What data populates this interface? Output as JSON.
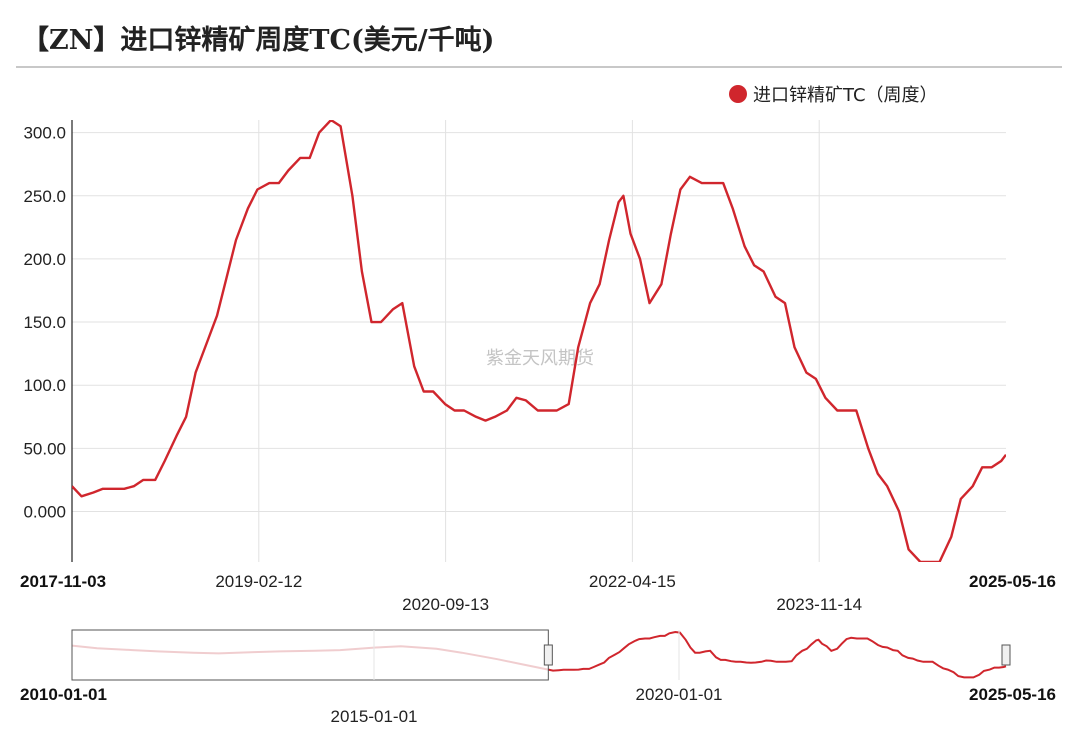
{
  "header": {
    "title": "【ZN】进口锌精矿周度TC(美元/千吨)"
  },
  "watermark": "紫金天风期货",
  "chart_data": {
    "type": "line",
    "title": "【ZN】进口锌精矿周度TC(美元/千吨)",
    "legend_position": "top-right",
    "grid": true,
    "series": [
      {
        "name": "进口锌精矿TC（周度）",
        "color": "#d0262d",
        "points": [
          [
            "2017-11-03",
            20
          ],
          [
            "2017-12-01",
            12
          ],
          [
            "2018-01-05",
            15
          ],
          [
            "2018-02-02",
            18
          ],
          [
            "2018-04-06",
            18
          ],
          [
            "2018-05-04",
            20
          ],
          [
            "2018-06-01",
            25
          ],
          [
            "2018-07-06",
            25
          ],
          [
            "2018-08-03",
            40
          ],
          [
            "2018-09-07",
            60
          ],
          [
            "2018-10-05",
            75
          ],
          [
            "2018-11-02",
            110
          ],
          [
            "2018-12-07",
            135
          ],
          [
            "2019-01-04",
            155
          ],
          [
            "2019-02-01",
            185
          ],
          [
            "2019-03-01",
            215
          ],
          [
            "2019-04-05",
            240
          ],
          [
            "2019-05-03",
            255
          ],
          [
            "2019-06-07",
            260
          ],
          [
            "2019-07-05",
            260
          ],
          [
            "2019-08-02",
            270
          ],
          [
            "2019-09-06",
            280
          ],
          [
            "2019-10-04",
            280
          ],
          [
            "2019-11-01",
            300
          ],
          [
            "2019-12-06",
            310
          ],
          [
            "2020-01-03",
            305
          ],
          [
            "2020-02-07",
            250
          ],
          [
            "2020-03-06",
            190
          ],
          [
            "2020-04-03",
            150
          ],
          [
            "2020-05-01",
            150
          ],
          [
            "2020-06-05",
            160
          ],
          [
            "2020-07-03",
            165
          ],
          [
            "2020-08-07",
            115
          ],
          [
            "2020-09-04",
            95
          ],
          [
            "2020-10-02",
            95
          ],
          [
            "2020-11-06",
            85
          ],
          [
            "2020-12-04",
            80
          ],
          [
            "2021-01-01",
            80
          ],
          [
            "2021-02-05",
            75
          ],
          [
            "2021-03-05",
            72
          ],
          [
            "2021-04-02",
            75
          ],
          [
            "2021-05-07",
            80
          ],
          [
            "2021-06-04",
            90
          ],
          [
            "2021-07-02",
            88
          ],
          [
            "2021-08-06",
            80
          ],
          [
            "2021-09-03",
            80
          ],
          [
            "2021-10-01",
            80
          ],
          [
            "2021-11-05",
            85
          ],
          [
            "2021-12-03",
            130
          ],
          [
            "2022-01-07",
            165
          ],
          [
            "2022-02-04",
            180
          ],
          [
            "2022-03-04",
            215
          ],
          [
            "2022-04-01",
            245
          ],
          [
            "2022-04-15",
            250
          ],
          [
            "2022-05-06",
            220
          ],
          [
            "2022-06-03",
            200
          ],
          [
            "2022-07-01",
            165
          ],
          [
            "2022-08-05",
            180
          ],
          [
            "2022-09-02",
            220
          ],
          [
            "2022-09-30",
            255
          ],
          [
            "2022-10-28",
            265
          ],
          [
            "2022-12-02",
            260
          ],
          [
            "2023-01-06",
            260
          ],
          [
            "2023-02-03",
            260
          ],
          [
            "2023-03-03",
            240
          ],
          [
            "2023-04-07",
            210
          ],
          [
            "2023-05-05",
            195
          ],
          [
            "2023-06-02",
            190
          ],
          [
            "2023-07-07",
            170
          ],
          [
            "2023-08-04",
            165
          ],
          [
            "2023-09-01",
            130
          ],
          [
            "2023-10-06",
            110
          ],
          [
            "2023-11-03",
            105
          ],
          [
            "2023-12-01",
            90
          ],
          [
            "2024-01-05",
            80
          ],
          [
            "2024-02-02",
            80
          ],
          [
            "2024-03-01",
            80
          ],
          [
            "2024-04-05",
            50
          ],
          [
            "2024-05-03",
            30
          ],
          [
            "2024-05-31",
            20
          ],
          [
            "2024-07-05",
            0
          ],
          [
            "2024-08-02",
            -30
          ],
          [
            "2024-09-06",
            -40
          ],
          [
            "2024-10-04",
            -40
          ],
          [
            "2024-11-01",
            -40
          ],
          [
            "2024-12-06",
            -20
          ],
          [
            "2025-01-03",
            10
          ],
          [
            "2025-02-07",
            20
          ],
          [
            "2025-03-07",
            35
          ],
          [
            "2025-04-04",
            35
          ],
          [
            "2025-05-02",
            40
          ],
          [
            "2025-05-16",
            45
          ]
        ]
      }
    ],
    "x_range": [
      "2017-11-03",
      "2025-05-16"
    ],
    "x_ticks": [
      {
        "label": "2017-11-03",
        "bold": true
      },
      {
        "label": "2019-02-12",
        "bold": false
      },
      {
        "label": "2020-09-13",
        "bold": false
      },
      {
        "label": "2022-04-15",
        "bold": false
      },
      {
        "label": "2023-11-14",
        "bold": false
      },
      {
        "label": "2025-05-16",
        "bold": true
      }
    ],
    "ylim": [
      -40,
      310
    ],
    "y_ticks": [
      {
        "value": 300,
        "label": "300.0"
      },
      {
        "value": 250,
        "label": "250.0"
      },
      {
        "value": 200,
        "label": "200.0"
      },
      {
        "value": 150,
        "label": "150.0"
      },
      {
        "value": 100,
        "label": "100.0"
      },
      {
        "value": 50,
        "label": "50.00"
      },
      {
        "value": 0,
        "label": "0.000"
      }
    ],
    "navigator": {
      "x_range": [
        "2010-01-01",
        "2025-05-16"
      ],
      "selection": [
        "2017-11-03",
        "2025-05-16"
      ],
      "ticks": [
        {
          "label": "2010-01-01",
          "bold": true
        },
        {
          "label": "2015-01-01",
          "bold": false
        },
        {
          "label": "2020-01-01",
          "bold": false
        },
        {
          "label": "2025-05-16",
          "bold": true
        }
      ],
      "history": [
        [
          "2010-01-01",
          205
        ],
        [
          "2010-06-01",
          185
        ],
        [
          "2011-01-01",
          170
        ],
        [
          "2011-06-01",
          160
        ],
        [
          "2012-01-01",
          150
        ],
        [
          "2012-06-01",
          145
        ],
        [
          "2013-01-01",
          155
        ],
        [
          "2013-06-01",
          160
        ],
        [
          "2014-01-01",
          165
        ],
        [
          "2014-06-01",
          170
        ],
        [
          "2015-01-01",
          190
        ],
        [
          "2015-06-01",
          200
        ],
        [
          "2016-01-01",
          180
        ],
        [
          "2016-06-01",
          150
        ],
        [
          "2017-01-01",
          100
        ],
        [
          "2017-06-01",
          60
        ],
        [
          "2017-11-03",
          20
        ]
      ]
    }
  }
}
